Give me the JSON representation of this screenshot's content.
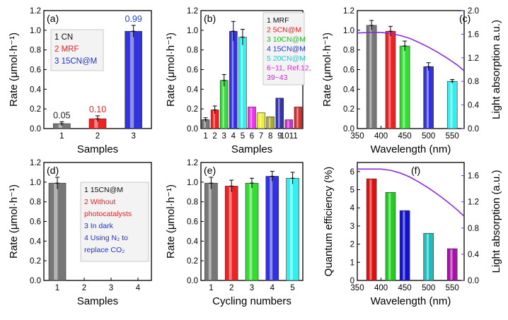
{
  "figure_title": "Photocatalytic CO2 reduction rate panels (a)-(f)",
  "chart_data": [
    {
      "panel": "(a)",
      "type": "bar",
      "xlabel": "Samples",
      "ylabel": "Rate (μmol·h⁻¹)",
      "ylim": [
        0,
        1.2
      ],
      "yticks": [
        "0.0",
        "0.2",
        "0.4",
        "0.6",
        "0.8",
        "1.0",
        "1.2"
      ],
      "categories": [
        "1",
        "2",
        "3"
      ],
      "values": [
        0.05,
        0.1,
        0.99
      ],
      "errors": [
        0.02,
        0.03,
        0.06
      ],
      "colors": [
        "#777777",
        "#ee2222",
        "#3333dd"
      ],
      "value_labels": [
        "0.05",
        "0.10",
        "0.99"
      ],
      "value_label_colors": [
        "#222222",
        "#ee2222",
        "#2244dd"
      ],
      "legend": [
        {
          "text": "1 CN",
          "color": "#111111"
        },
        {
          "text": "2 MRF",
          "color": "#ee2222"
        },
        {
          "text": "3 15CN@M",
          "color": "#2233cc"
        }
      ]
    },
    {
      "panel": "(b)",
      "type": "bar",
      "xlabel": "Samples",
      "ylabel": "Rate (μmol·h⁻¹)",
      "ylim": [
        0,
        1.2
      ],
      "yticks": [
        "0.0",
        "0.2",
        "0.4",
        "0.6",
        "0.8",
        "1.0",
        "1.2"
      ],
      "categories": [
        "1",
        "2",
        "3",
        "4",
        "5",
        "6",
        "7",
        "8",
        "9",
        "10",
        "11"
      ],
      "tick_labels": [
        "1",
        "2",
        "3",
        "4",
        "5",
        "6",
        "7",
        "8",
        "9",
        "1011",
        ""
      ],
      "values": [
        0.09,
        0.19,
        0.49,
        0.99,
        0.93,
        0.22,
        0.16,
        0.12,
        0.31,
        0.09,
        0.22
      ],
      "errors": [
        0.02,
        0.04,
        0.06,
        0.1,
        0.08,
        0,
        0,
        0,
        0,
        0,
        0
      ],
      "colors": [
        "#777777",
        "#ee2222",
        "#33dd33",
        "#3333dd",
        "#33eeee",
        "#ee33ee",
        "#eeee33",
        "#aaaa33",
        "#3333aa",
        "#cc33cc",
        "#cc3333"
      ],
      "legend": [
        {
          "text": "1 MRF",
          "color": "#111111"
        },
        {
          "text": "2 5CN@M",
          "color": "#ee2222"
        },
        {
          "text": "3 10CN@M",
          "color": "#22bb22"
        },
        {
          "text": "4 15CN@M",
          "color": "#2233cc"
        },
        {
          "text": "5 20CN@M",
          "color": "#22cccc"
        },
        {
          "text": "6~11, Ref.12,",
          "color": "#dd22dd"
        },
        {
          "text": "39~43",
          "color": "#dd22dd"
        }
      ]
    },
    {
      "panel": "(c)",
      "type": "bar",
      "xlabel": "Wavelength (nm)",
      "ylabel": "Rate (μmol·h⁻¹)",
      "ylabel_right": "Light absorption a.u.)",
      "xlim": [
        350,
        575
      ],
      "xticks": [
        "350",
        "400",
        "450",
        "500",
        "550"
      ],
      "ylim": [
        0,
        1.2
      ],
      "yticks": [
        "0.0",
        "0.2",
        "0.4",
        "0.6",
        "0.8",
        "1.0",
        "1.2"
      ],
      "ylim_right": [
        0,
        2.0
      ],
      "yticks_right": [
        "0.0",
        "0.4",
        "0.8",
        "1.2",
        "1.6",
        "2.0"
      ],
      "x": [
        380,
        420,
        450,
        500,
        550
      ],
      "values": [
        1.05,
        0.99,
        0.84,
        0.63,
        0.48
      ],
      "errors": [
        0.05,
        0.05,
        0.05,
        0.04,
        0.02
      ],
      "colors": [
        "#777777",
        "#ee2222",
        "#33dd33",
        "#3333dd",
        "#33eeee"
      ],
      "absorption_curve": {
        "x": [
          350,
          380,
          400,
          420,
          440,
          460,
          480,
          500,
          520,
          540,
          560,
          575
        ],
        "y": [
          1.62,
          1.63,
          1.63,
          1.61,
          1.58,
          1.53,
          1.46,
          1.38,
          1.29,
          1.19,
          1.08,
          0.98
        ]
      }
    },
    {
      "panel": "(d)",
      "type": "bar",
      "xlabel": "Samples",
      "ylabel": "Rate (μmol·h⁻¹)",
      "ylim": [
        0,
        1.2
      ],
      "yticks": [
        "0.0",
        "0.2",
        "0.4",
        "0.6",
        "0.8",
        "1.0",
        "1.2"
      ],
      "categories": [
        "1",
        "2",
        "3",
        "4"
      ],
      "values": [
        0.99,
        0,
        0,
        0
      ],
      "errors": [
        0.06,
        0,
        0,
        0
      ],
      "colors": [
        "#777777",
        "#777777",
        "#777777",
        "#777777"
      ],
      "legend": [
        {
          "text": "1 15CN@M",
          "color": "#111111"
        },
        {
          "text": "2 Without",
          "color": "#ee2222"
        },
        {
          "text": "photocatalysts",
          "color": "#ee2222"
        },
        {
          "text": "3 In dark",
          "color": "#2233cc"
        },
        {
          "text": "4 Using N₂ to",
          "color": "#2233cc"
        },
        {
          "text": "replace CO₂",
          "color": "#2233cc"
        }
      ]
    },
    {
      "panel": "(e)",
      "type": "bar",
      "xlabel": "Cycling numbers",
      "ylabel": "Rate (μmol·h⁻¹)",
      "ylim": [
        0,
        1.2
      ],
      "yticks": [
        "0.0",
        "0.2",
        "0.4",
        "0.6",
        "0.8",
        "1.0",
        "1.2"
      ],
      "categories": [
        "1",
        "2",
        "3",
        "4",
        "5"
      ],
      "values": [
        0.99,
        0.96,
        0.99,
        1.06,
        1.04
      ],
      "errors": [
        0.06,
        0.06,
        0.05,
        0.05,
        0.06
      ],
      "colors": [
        "#777777",
        "#ee2222",
        "#33dd33",
        "#3333dd",
        "#33eeee"
      ]
    },
    {
      "panel": "(f)",
      "type": "bar",
      "xlabel": "Wavelength (nm)",
      "ylabel": "Quantum efficiency (%)",
      "ylabel_right": "Light absorption (a.u.)",
      "xlim": [
        350,
        575
      ],
      "xticks": [
        "350",
        "400",
        "450",
        "500",
        "550"
      ],
      "ylim": [
        0,
        6.5
      ],
      "yticks": [
        "0",
        "1",
        "2",
        "3",
        "4",
        "5",
        "6"
      ],
      "ylim_right": [
        0,
        1.8
      ],
      "yticks_right": [
        "0.0",
        "0.4",
        "0.8",
        "1.2",
        "1.6"
      ],
      "x": [
        380,
        420,
        450,
        500,
        550
      ],
      "values": [
        5.6,
        4.85,
        3.85,
        2.6,
        1.75
      ],
      "colors": [
        "#dd1111",
        "#22cc22",
        "#1111cc",
        "#22bbbb",
        "#aa11aa"
      ],
      "absorption_curve": {
        "x": [
          350,
          380,
          400,
          420,
          440,
          460,
          480,
          500,
          520,
          540,
          560,
          575
        ],
        "y": [
          1.7,
          1.7,
          1.7,
          1.68,
          1.64,
          1.58,
          1.5,
          1.41,
          1.31,
          1.2,
          1.08,
          0.98
        ]
      }
    }
  ]
}
